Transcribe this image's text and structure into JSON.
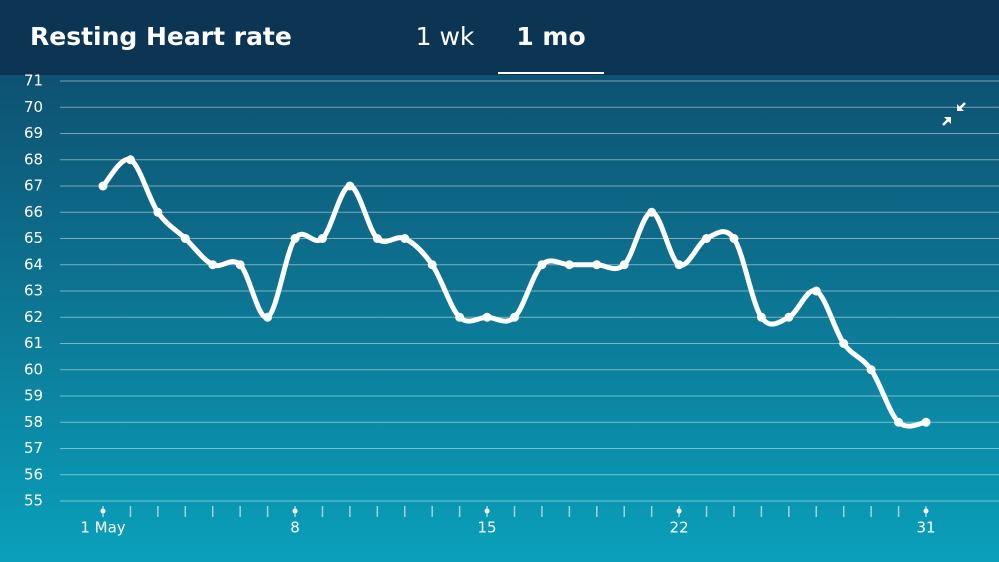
{
  "tabs": [
    "1 wk",
    "1 mo"
  ],
  "selected_tab": 1,
  "chart_data": {
    "type": "line",
    "title": "Resting Heart rate",
    "x": [
      1,
      2,
      3,
      4,
      5,
      6,
      7,
      8,
      9,
      10,
      11,
      12,
      13,
      14,
      15,
      16,
      17,
      18,
      19,
      20,
      21,
      22,
      23,
      24,
      25,
      26,
      27,
      28,
      29,
      30,
      31
    ],
    "series": [
      {
        "color": "#ffffff",
        "values": [
          67,
          68,
          66,
          65,
          64,
          64,
          62,
          65,
          65,
          67,
          65,
          65,
          64,
          62,
          62,
          62,
          64,
          64,
          64,
          64,
          66,
          64,
          65,
          65,
          62,
          62,
          63,
          61,
          60,
          58,
          58
        ]
      }
    ],
    "xlim": [
      1,
      31
    ],
    "xticks": [
      {
        "value": 1,
        "label": "1 May"
      },
      8,
      15,
      22,
      31
    ],
    "ylim": [
      55,
      71
    ],
    "yticks": [
      55,
      56,
      57,
      58,
      59,
      60,
      61,
      62,
      63,
      64,
      65,
      66,
      67,
      68,
      69,
      70,
      71
    ],
    "grid": true
  }
}
